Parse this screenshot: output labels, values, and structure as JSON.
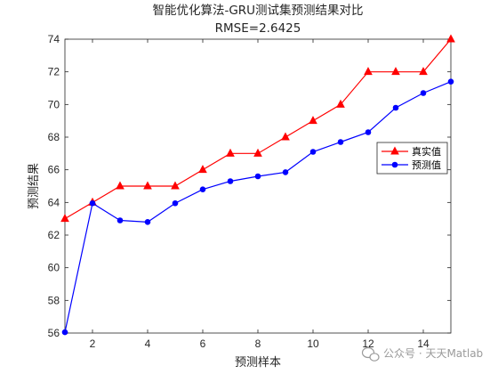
{
  "chart_data": {
    "type": "line",
    "title": "智能优化算法-GRU测试集预测结果对比",
    "subtitle": "RMSE=2.6425",
    "xlabel": "预测样本",
    "ylabel": "预测结果",
    "xlim": [
      1,
      15
    ],
    "ylim": [
      56,
      74
    ],
    "xticks": [
      2,
      4,
      6,
      8,
      10,
      12,
      14
    ],
    "yticks": [
      56,
      58,
      60,
      62,
      64,
      66,
      68,
      70,
      72,
      74
    ],
    "grid": false,
    "legend_position": "right",
    "x": [
      1,
      2,
      3,
      4,
      5,
      6,
      7,
      8,
      9,
      10,
      11,
      12,
      13,
      14,
      15
    ],
    "series": [
      {
        "name": "真实值",
        "color": "#ff0000",
        "marker": "triangle",
        "values": [
          63,
          64,
          65,
          65,
          65,
          66,
          67,
          67,
          68,
          69,
          70,
          72,
          72,
          72,
          74
        ]
      },
      {
        "name": "预测值",
        "color": "#0000ff",
        "marker": "circle",
        "values": [
          56.05,
          63.95,
          62.9,
          62.8,
          63.95,
          64.8,
          65.3,
          65.6,
          65.85,
          67.1,
          67.7,
          68.3,
          69.8,
          70.7,
          71.4
        ]
      }
    ]
  },
  "watermark": {
    "text": "公众号 · 天天Matlab",
    "icon": "wechat-icon"
  }
}
